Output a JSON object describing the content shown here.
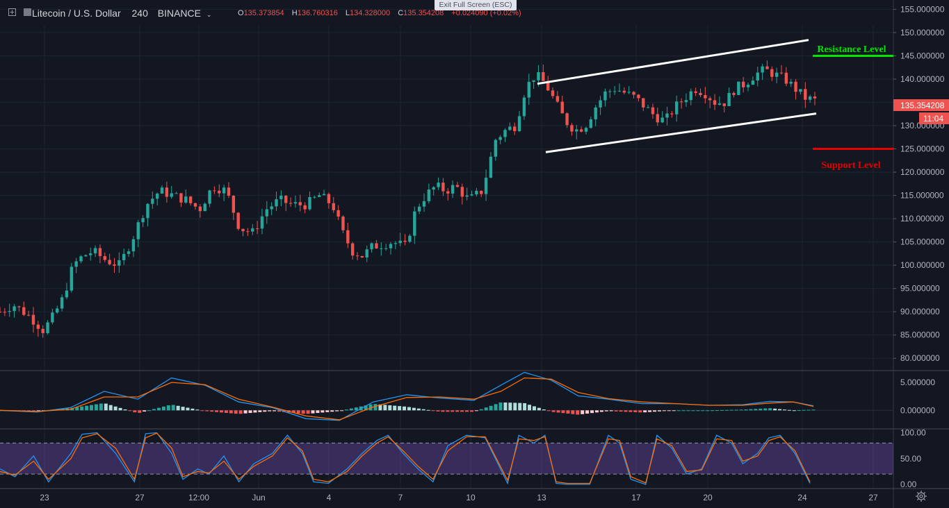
{
  "header": {
    "symbol": "Litecoin / U.S. Dollar",
    "interval": "240",
    "exchange": "BINANCE",
    "open_label": "O",
    "open": "135.373854",
    "high_label": "H",
    "high": "136.760316",
    "low_label": "L",
    "low": "134.328000",
    "close_label": "C",
    "close": "135.354208",
    "change": "+0.024090 (+0.02%)"
  },
  "fullscreen_notice": "Exit Full Screen (ESC)",
  "icons": [
    "add-symbol-icon",
    "chart-logo-icon",
    "chevron-down-icon",
    "settings-gear-icon"
  ],
  "colors": {
    "up": "#26a69a",
    "down": "#ef5350",
    "background": "#131722",
    "resistance": "#00e600",
    "support": "#e60000",
    "channel": "#ffffff"
  },
  "chart_data": {
    "type": "candlestick",
    "title": "Litecoin / U.S. Dollar",
    "price_axis": {
      "ticks": [
        "155.000000",
        "150.000000",
        "145.000000",
        "140.000000",
        "135.000000",
        "130.000000",
        "125.000000",
        "120.000000",
        "115.000000",
        "110.000000",
        "105.000000",
        "100.000000",
        "95.000000",
        "90.000000",
        "85.000000",
        "80.000000"
      ],
      "range": [
        77.5,
        157
      ]
    },
    "time_axis": [
      "23",
      "27",
      "12:00",
      "Jun",
      "4",
      "7",
      "10",
      "13",
      "17",
      "20",
      "24",
      "27"
    ],
    "last_price": "135.354208",
    "countdown": "11:04",
    "resistance": {
      "label": "Resistance Level",
      "value": 145.0
    },
    "support": {
      "label": "Support Level",
      "value": 125.0
    },
    "channel": {
      "upper": [
        [
          12.75,
          139.0
        ],
        [
          24.4,
          148.4
        ]
      ],
      "lower": [
        [
          12.9,
          124.3
        ],
        [
          24.6,
          132.6
        ]
      ]
    },
    "price_path": [
      [
        19.4,
        90
      ],
      [
        19.8,
        91.5
      ],
      [
        20.3,
        89
      ],
      [
        20.7,
        86
      ],
      [
        21.0,
        89
      ],
      [
        21.3,
        93
      ],
      [
        21.6,
        100
      ],
      [
        21.9,
        102
      ],
      [
        22.2,
        103
      ],
      [
        22.6,
        101
      ],
      [
        23.0,
        100
      ],
      [
        23.4,
        106
      ],
      [
        23.8,
        113
      ],
      [
        24.2,
        116
      ],
      [
        24.6,
        115
      ],
      [
        25.0,
        114
      ],
      [
        25.4,
        112
      ],
      [
        25.8,
        117
      ],
      [
        26.2,
        116
      ],
      [
        26.6,
        108
      ],
      [
        27.0,
        107
      ],
      [
        27.4,
        112
      ],
      [
        27.8,
        114
      ],
      [
        28.2,
        113
      ],
      [
        28.6,
        113
      ],
      [
        29.0,
        115
      ],
      [
        29.4,
        113
      ],
      [
        29.7,
        107
      ],
      [
        30.0,
        103
      ],
      [
        30.3,
        102
      ],
      [
        30.6,
        104
      ],
      [
        30.9,
        104.5
      ],
      [
        31.2,
        105
      ],
      [
        31.6,
        104
      ],
      [
        31.9,
        112
      ],
      [
        32.2,
        115
      ],
      [
        32.5,
        117
      ],
      [
        32.8,
        116
      ],
      [
        33.1,
        117
      ],
      [
        33.5,
        114
      ],
      [
        33.9,
        116
      ],
      [
        34.3,
        127
      ],
      [
        34.6,
        129
      ],
      [
        34.9,
        130
      ],
      [
        35.2,
        138
      ],
      [
        35.5,
        141
      ],
      [
        35.8,
        139
      ],
      [
        36.1,
        135
      ],
      [
        36.4,
        131
      ],
      [
        36.7,
        129
      ],
      [
        37.0,
        130
      ],
      [
        37.3,
        134
      ],
      [
        37.6,
        137
      ],
      [
        37.9,
        138
      ],
      [
        38.2,
        137
      ],
      [
        38.5,
        136
      ],
      [
        38.8,
        134
      ],
      [
        39.1,
        132
      ],
      [
        39.4,
        131
      ],
      [
        39.7,
        134
      ],
      [
        40.0,
        136
      ],
      [
        40.3,
        138
      ],
      [
        40.6,
        137
      ],
      [
        40.9,
        135
      ],
      [
        41.2,
        135
      ],
      [
        41.5,
        138
      ],
      [
        41.8,
        139
      ],
      [
        42.1,
        141
      ],
      [
        42.4,
        142
      ],
      [
        42.7,
        141
      ],
      [
        43.0,
        140
      ],
      [
        43.3,
        138
      ],
      [
        43.6,
        136
      ],
      [
        43.9,
        135.4
      ]
    ],
    "macd": {
      "ticks": [
        "5.000000",
        "0.000000"
      ],
      "range": [
        -3.2,
        7.0
      ],
      "macd_line": [
        [
          19.4,
          0
        ],
        [
          20.5,
          -0.3
        ],
        [
          21.5,
          0.5
        ],
        [
          22.5,
          3.4
        ],
        [
          23.5,
          2.0
        ],
        [
          24.5,
          5.8
        ],
        [
          25.5,
          4.5
        ],
        [
          26.5,
          1.5
        ],
        [
          27.5,
          0.5
        ],
        [
          28.5,
          -1.5
        ],
        [
          29.5,
          -1.8
        ],
        [
          30.5,
          1.5
        ],
        [
          31.5,
          2.8
        ],
        [
          32.5,
          2.2
        ],
        [
          33.5,
          1.8
        ],
        [
          34.3,
          4.5
        ],
        [
          35.0,
          6.8
        ],
        [
          35.8,
          5.4
        ],
        [
          36.6,
          2.6
        ],
        [
          37.5,
          2.0
        ],
        [
          38.5,
          1.2
        ],
        [
          39.5,
          1.2
        ],
        [
          40.5,
          0.9
        ],
        [
          41.5,
          1.0
        ],
        [
          42.3,
          1.6
        ],
        [
          43.0,
          1.5
        ],
        [
          43.6,
          0.8
        ]
      ],
      "signal_line": [
        [
          19.4,
          0
        ],
        [
          20.5,
          -0.2
        ],
        [
          21.5,
          0.2
        ],
        [
          22.5,
          2.4
        ],
        [
          23.5,
          2.4
        ],
        [
          24.5,
          5.0
        ],
        [
          25.5,
          4.6
        ],
        [
          26.5,
          2.0
        ],
        [
          27.5,
          0.6
        ],
        [
          28.5,
          -1.0
        ],
        [
          29.5,
          -1.7
        ],
        [
          30.5,
          0.6
        ],
        [
          31.5,
          2.3
        ],
        [
          32.5,
          2.4
        ],
        [
          33.5,
          2.0
        ],
        [
          34.3,
          3.4
        ],
        [
          35.0,
          5.8
        ],
        [
          35.8,
          5.6
        ],
        [
          36.6,
          3.2
        ],
        [
          37.5,
          2.1
        ],
        [
          38.5,
          1.5
        ],
        [
          39.5,
          1.2
        ],
        [
          40.5,
          0.9
        ],
        [
          41.5,
          0.9
        ],
        [
          42.3,
          1.3
        ],
        [
          43.0,
          1.5
        ],
        [
          43.6,
          0.7
        ]
      ]
    },
    "stochastic": {
      "ticks": [
        "100.00",
        "50.00",
        "0.00"
      ],
      "range": [
        -8,
        106
      ],
      "bands": [
        20,
        80
      ],
      "k_line": [
        [
          19.4,
          30
        ],
        [
          19.8,
          15
        ],
        [
          20.3,
          55
        ],
        [
          20.7,
          5
        ],
        [
          21.3,
          60
        ],
        [
          21.6,
          97
        ],
        [
          22.0,
          100
        ],
        [
          22.5,
          60
        ],
        [
          23.0,
          5
        ],
        [
          23.3,
          98
        ],
        [
          23.6,
          100
        ],
        [
          24.0,
          60
        ],
        [
          24.3,
          10
        ],
        [
          24.7,
          30
        ],
        [
          25.0,
          20
        ],
        [
          25.4,
          55
        ],
        [
          25.8,
          5
        ],
        [
          26.2,
          40
        ],
        [
          26.7,
          60
        ],
        [
          27.1,
          95
        ],
        [
          27.5,
          60
        ],
        [
          27.8,
          5
        ],
        [
          28.2,
          2
        ],
        [
          28.7,
          30
        ],
        [
          29.1,
          60
        ],
        [
          29.5,
          85
        ],
        [
          29.8,
          95
        ],
        [
          30.2,
          60
        ],
        [
          30.6,
          30
        ],
        [
          31.0,
          5
        ],
        [
          31.4,
          75
        ],
        [
          31.9,
          95
        ],
        [
          32.4,
          90
        ],
        [
          33.0,
          2
        ],
        [
          33.3,
          95
        ],
        [
          33.7,
          80
        ],
        [
          34.0,
          95
        ],
        [
          34.3,
          2
        ],
        [
          34.6,
          0
        ],
        [
          35.2,
          0
        ],
        [
          35.7,
          95
        ],
        [
          36.0,
          80
        ],
        [
          36.3,
          10
        ],
        [
          36.7,
          0
        ],
        [
          37.0,
          95
        ],
        [
          37.4,
          70
        ],
        [
          37.8,
          20
        ],
        [
          38.2,
          30
        ],
        [
          38.6,
          95
        ],
        [
          39.0,
          80
        ],
        [
          39.3,
          40
        ],
        [
          39.7,
          60
        ],
        [
          40.0,
          90
        ],
        [
          40.3,
          95
        ],
        [
          40.7,
          60
        ],
        [
          41.1,
          2
        ]
      ],
      "d_line": [
        [
          19.4,
          25
        ],
        [
          19.8,
          18
        ],
        [
          20.3,
          45
        ],
        [
          20.7,
          10
        ],
        [
          21.3,
          50
        ],
        [
          21.6,
          90
        ],
        [
          22.0,
          98
        ],
        [
          22.5,
          70
        ],
        [
          23.0,
          10
        ],
        [
          23.3,
          90
        ],
        [
          23.6,
          99
        ],
        [
          24.0,
          70
        ],
        [
          24.3,
          15
        ],
        [
          24.7,
          25
        ],
        [
          25.0,
          22
        ],
        [
          25.4,
          45
        ],
        [
          25.8,
          10
        ],
        [
          26.2,
          35
        ],
        [
          26.7,
          55
        ],
        [
          27.1,
          90
        ],
        [
          27.5,
          65
        ],
        [
          27.8,
          10
        ],
        [
          28.2,
          5
        ],
        [
          28.7,
          25
        ],
        [
          29.1,
          55
        ],
        [
          29.5,
          80
        ],
        [
          29.8,
          92
        ],
        [
          30.2,
          65
        ],
        [
          30.6,
          35
        ],
        [
          31.0,
          10
        ],
        [
          31.4,
          65
        ],
        [
          31.9,
          92
        ],
        [
          32.4,
          92
        ],
        [
          33.0,
          8
        ],
        [
          33.3,
          88
        ],
        [
          33.7,
          85
        ],
        [
          34.0,
          92
        ],
        [
          34.3,
          5
        ],
        [
          34.6,
          2
        ],
        [
          35.2,
          2
        ],
        [
          35.7,
          88
        ],
        [
          36.0,
          85
        ],
        [
          36.3,
          15
        ],
        [
          36.7,
          3
        ],
        [
          37.0,
          88
        ],
        [
          37.4,
          75
        ],
        [
          37.8,
          25
        ],
        [
          38.2,
          28
        ],
        [
          38.6,
          88
        ],
        [
          39.0,
          85
        ],
        [
          39.3,
          45
        ],
        [
          39.7,
          55
        ],
        [
          40.0,
          85
        ],
        [
          40.3,
          92
        ],
        [
          40.7,
          65
        ],
        [
          41.1,
          5
        ]
      ]
    }
  }
}
